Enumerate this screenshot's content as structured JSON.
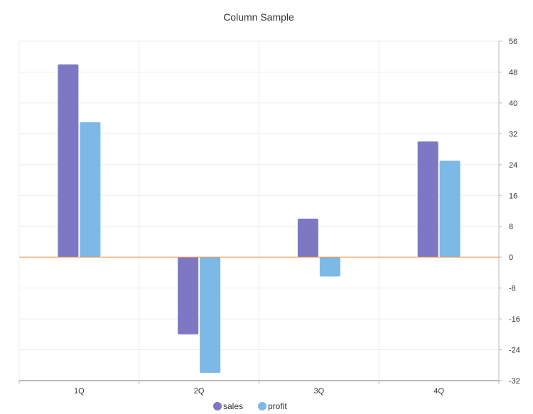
{
  "chart_data": {
    "type": "bar",
    "title": "Column Sample",
    "categories": [
      "1Q",
      "2Q",
      "3Q",
      "4Q"
    ],
    "series": [
      {
        "name": "sales",
        "values": [
          50,
          -20,
          10,
          30
        ]
      },
      {
        "name": "profit",
        "values": [
          35,
          -30,
          -5,
          25
        ]
      }
    ],
    "ylim": [
      -32,
      56
    ],
    "yticks": [
      56,
      48,
      40,
      32,
      24,
      16,
      8,
      0,
      -8,
      -16,
      -24,
      -32
    ],
    "y_axis_position": "right",
    "grid": true,
    "legend_position": "bottom",
    "colors": {
      "sales": "#7e78c4",
      "profit": "#7db9e6",
      "zero_line": "#f0944a",
      "grid": "#ececec",
      "axis": "#bbbbbb"
    }
  }
}
